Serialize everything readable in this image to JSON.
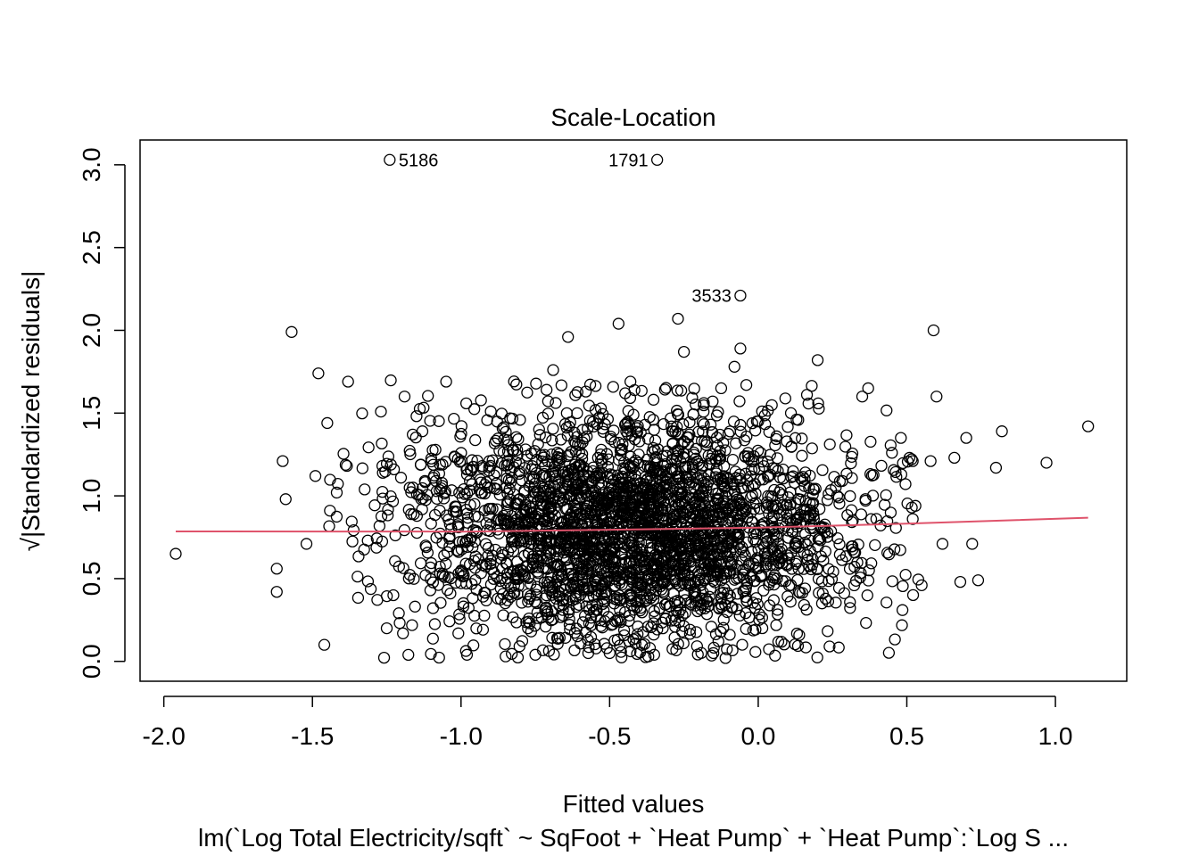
{
  "chart_data": {
    "type": "scatter",
    "title": "Scale-Location",
    "xlabel": "Fitted values",
    "ylabel": "√|Standardized residuals|",
    "subtitle": "lm(`Log Total Electricity/sqft` ~ SqFoot + `Heat Pump` + `Heat Pump`:`Log S ...",
    "xlim": [
      -2.08,
      1.24
    ],
    "ylim": [
      -0.12,
      3.15
    ],
    "x_ticks": [
      "-2.0",
      "-1.5",
      "-1.0",
      "-0.5",
      "0.0",
      "0.5",
      "1.0"
    ],
    "y_ticks": [
      "0.0",
      "0.5",
      "1.0",
      "1.5",
      "2.0",
      "2.5",
      "3.0"
    ],
    "grid": false,
    "marker": "open-circle",
    "n_points_approx": 3000,
    "highlighted_points": [
      {
        "label": "5186",
        "x": -1.24,
        "y": 3.03
      },
      {
        "label": "1791",
        "x": -0.34,
        "y": 3.03
      },
      {
        "label": "3533",
        "x": -0.06,
        "y": 2.21
      }
    ],
    "sample_points": [
      {
        "x": -1.96,
        "y": 0.65
      },
      {
        "x": -1.62,
        "y": 0.56
      },
      {
        "x": -1.62,
        "y": 0.42
      },
      {
        "x": -1.6,
        "y": 1.21
      },
      {
        "x": -1.59,
        "y": 0.98
      },
      {
        "x": -1.57,
        "y": 1.99
      },
      {
        "x": -1.52,
        "y": 0.71
      },
      {
        "x": -1.49,
        "y": 1.12
      },
      {
        "x": -1.48,
        "y": 1.74
      },
      {
        "x": -1.46,
        "y": 0.1
      },
      {
        "x": -1.45,
        "y": 1.44
      },
      {
        "x": -1.38,
        "y": 1.69
      },
      {
        "x": -1.25,
        "y": 0.2
      },
      {
        "x": -1.19,
        "y": 1.6
      },
      {
        "x": -1.13,
        "y": 1.39
      },
      {
        "x": -1.05,
        "y": 1.69
      },
      {
        "x": -0.98,
        "y": 0.04
      },
      {
        "x": -0.9,
        "y": 1.51
      },
      {
        "x": -0.85,
        "y": 0.03
      },
      {
        "x": -0.75,
        "y": 0.04
      },
      {
        "x": -0.69,
        "y": 1.76
      },
      {
        "x": -0.64,
        "y": 1.96
      },
      {
        "x": -0.58,
        "y": 1.63
      },
      {
        "x": -0.5,
        "y": 0.05
      },
      {
        "x": -0.47,
        "y": 2.04
      },
      {
        "x": -0.43,
        "y": 1.69
      },
      {
        "x": -0.35,
        "y": 0.04
      },
      {
        "x": -0.27,
        "y": 2.07
      },
      {
        "x": -0.25,
        "y": 1.87
      },
      {
        "x": -0.16,
        "y": 1.43
      },
      {
        "x": -0.11,
        "y": 0.02
      },
      {
        "x": -0.08,
        "y": 1.78
      },
      {
        "x": -0.06,
        "y": 1.89
      },
      {
        "x": -0.04,
        "y": 1.67
      },
      {
        "x": 0.0,
        "y": 1.45
      },
      {
        "x": 0.11,
        "y": 1.5
      },
      {
        "x": 0.2,
        "y": 1.82
      },
      {
        "x": 0.24,
        "y": 0.09
      },
      {
        "x": 0.35,
        "y": 1.6
      },
      {
        "x": 0.37,
        "y": 1.65
      },
      {
        "x": 0.45,
        "y": 1.26
      },
      {
        "x": 0.48,
        "y": 1.35
      },
      {
        "x": 0.52,
        "y": 1.21
      },
      {
        "x": 0.52,
        "y": 0.86
      },
      {
        "x": 0.55,
        "y": 0.46
      },
      {
        "x": 0.58,
        "y": 1.21
      },
      {
        "x": 0.59,
        "y": 2.0
      },
      {
        "x": 0.6,
        "y": 1.6
      },
      {
        "x": 0.62,
        "y": 0.71
      },
      {
        "x": 0.66,
        "y": 1.23
      },
      {
        "x": 0.68,
        "y": 0.48
      },
      {
        "x": 0.7,
        "y": 1.35
      },
      {
        "x": 0.72,
        "y": 0.71
      },
      {
        "x": 0.74,
        "y": 0.49
      },
      {
        "x": 0.8,
        "y": 1.17
      },
      {
        "x": 0.82,
        "y": 1.39
      },
      {
        "x": 0.97,
        "y": 1.2
      },
      {
        "x": 1.11,
        "y": 1.42
      }
    ],
    "cloud": {
      "x_center": -0.42,
      "x_spread": 0.37,
      "y_center": 0.8,
      "y_spread": 0.34,
      "y_min": 0.02,
      "y_max": 1.7
    },
    "smooth_line": {
      "color": "#DF536B",
      "x": [
        -1.96,
        -1.0,
        -0.5,
        0.0,
        0.5,
        1.11
      ],
      "y": [
        0.785,
        0.784,
        0.795,
        0.808,
        0.832,
        0.868
      ]
    }
  }
}
